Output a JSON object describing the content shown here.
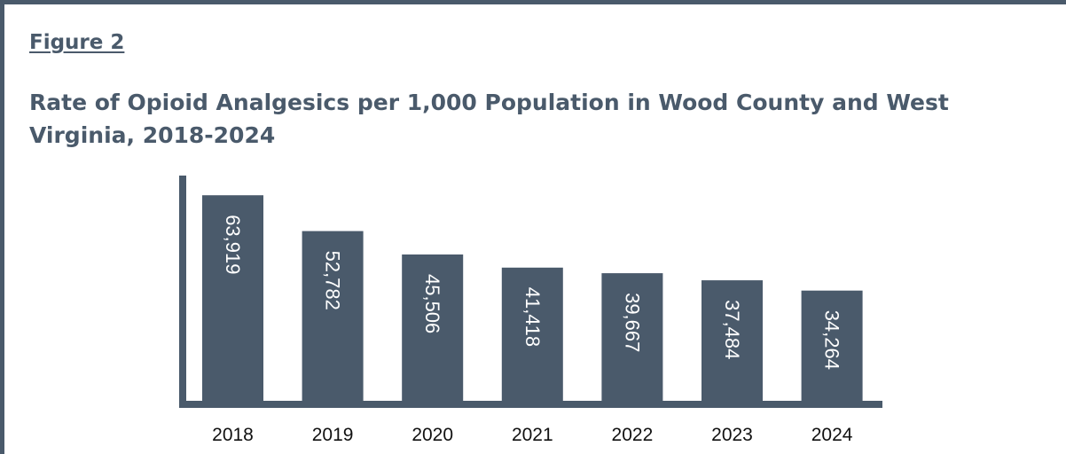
{
  "figure_label": "Figure 2",
  "chart_data": {
    "type": "bar",
    "title": "Rate of Opioid Analgesics per 1,000 Population in Wood County and West Virginia, 2018-2024",
    "categories": [
      "2018",
      "2019",
      "2020",
      "2021",
      "2022",
      "2023",
      "2024"
    ],
    "values": [
      63919,
      52782,
      45506,
      41418,
      39667,
      37484,
      34264
    ],
    "data_labels": [
      "63,919",
      "52,782",
      "45,506",
      "41,418",
      "39,667",
      "37,484",
      "34,264"
    ],
    "xlabel": "",
    "ylabel": "",
    "ylim": [
      0,
      67000
    ],
    "grid": false,
    "legend": "none",
    "bar_color": "#4a5a6b"
  }
}
